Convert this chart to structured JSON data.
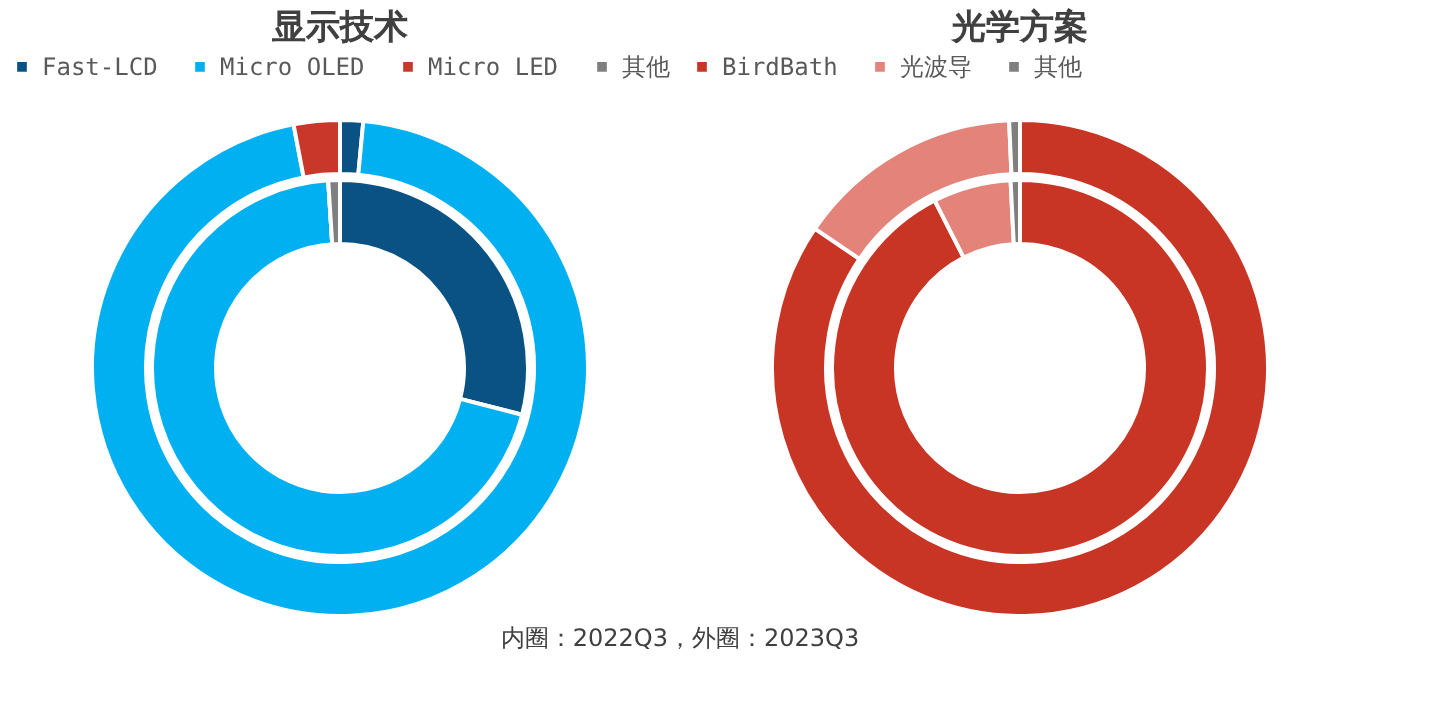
{
  "chart_data": [
    {
      "type": "donut",
      "title": "显示技术",
      "categories": [
        "Fast-LCD",
        "Micro OLED",
        "Micro LED",
        "其他"
      ],
      "colors": [
        "#0a5283",
        "#00b0f0",
        "#c8372a",
        "#7f7f7f"
      ],
      "legend": "top",
      "series": [
        {
          "values": [
            29,
            70,
            0,
            1
          ]
        },
        {
          "values": [
            1.5,
            95.5,
            3,
            0
          ]
        }
      ]
    },
    {
      "type": "donut",
      "title": "光学方案",
      "categories": [
        "BirdBath",
        "光波导",
        "其他"
      ],
      "colors": [
        "#c83525",
        "#e3837a",
        "#7f7f7f"
      ],
      "legend": "top",
      "series": [
        {
          "values": [
            92.5,
            6.7,
            0.8
          ]
        },
        {
          "values": [
            84.5,
            14.8,
            0.7
          ]
        }
      ],
      "annotations": [
        "内圈：2022Q3，外圈：2023Q3"
      ]
    }
  ]
}
